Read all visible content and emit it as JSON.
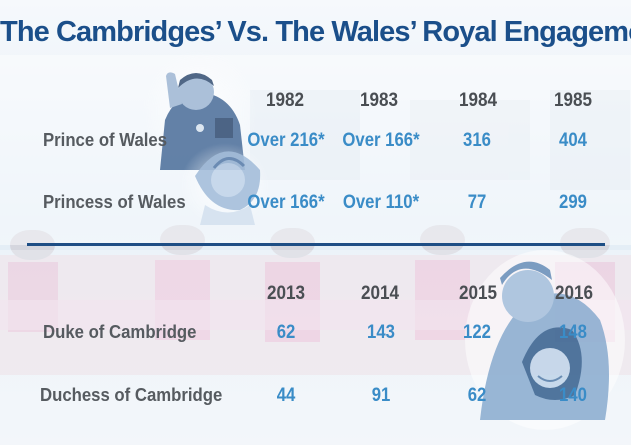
{
  "title": "The Cambridges’ Vs. The Wales’ Royal Engagements",
  "chart_data": {
    "type": "table",
    "tables": [
      {
        "years": [
          "1982",
          "1983",
          "1984",
          "1985"
        ],
        "rows": [
          {
            "label": "Prince of Wales",
            "values": [
              "Over 216*",
              "Over 166*",
              "316",
              "404"
            ]
          },
          {
            "label": "Princess of Wales",
            "values": [
              "Over 166*",
              "Over 110*",
              "77",
              "299"
            ]
          }
        ]
      },
      {
        "years": [
          "2013",
          "2014",
          "2015",
          "2016"
        ],
        "rows": [
          {
            "label": "Duke of Cambridge",
            "values": [
              "62",
              "143",
              "122",
              "148"
            ]
          },
          {
            "label": "Duchess of Cambridge",
            "values": [
              "44",
              "91",
              "62",
              "140"
            ]
          }
        ]
      }
    ]
  }
}
